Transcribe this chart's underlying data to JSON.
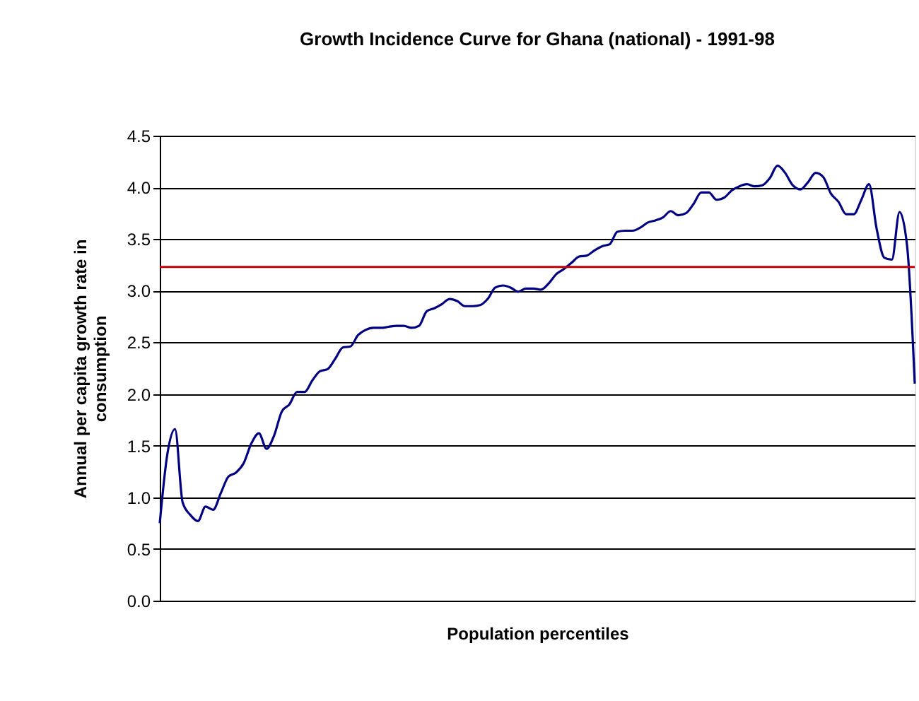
{
  "chart_data": {
    "type": "line",
    "title": "Growth Incidence Curve for Ghana (national) - 1991-98",
    "xlabel": "Population percentiles",
    "ylabel": "Annual per capita growth rate in consumption",
    "categories": [
      null,
      null,
      null,
      null,
      null,
      null,
      null,
      null,
      null,
      null,
      null,
      null,
      null,
      null,
      null,
      null,
      null,
      null,
      null,
      null,
      null,
      null,
      null,
      null,
      null,
      null,
      null,
      null,
      null,
      null,
      null,
      null,
      null,
      null,
      null,
      null,
      null,
      null,
      null,
      null,
      null,
      null,
      null,
      null,
      null,
      null,
      null,
      null,
      null,
      null,
      null,
      null,
      null,
      null,
      null,
      null,
      null,
      null,
      null,
      null,
      null,
      null,
      null,
      null,
      null,
      null,
      null,
      null,
      null,
      null,
      null,
      null,
      null,
      null,
      null,
      null,
      null,
      null,
      null,
      null,
      null,
      null,
      null,
      null,
      null,
      null,
      null,
      null,
      null,
      null,
      null,
      null,
      null,
      null,
      null,
      null,
      null,
      null,
      null,
      null
    ],
    "series": [
      {
        "color": "#000080",
        "values": [
          0.75,
          1.42,
          1.66,
          0.95,
          0.83,
          0.77,
          0.91,
          0.88,
          1.04,
          1.2,
          1.24,
          1.33,
          1.52,
          1.62,
          1.47,
          1.6,
          1.83,
          1.9,
          2.02,
          2.02,
          2.13,
          2.22,
          2.24,
          2.34,
          2.45,
          2.46,
          2.57,
          2.62,
          2.64,
          2.64,
          2.65,
          2.66,
          2.66,
          2.64,
          2.66,
          2.8,
          2.83,
          2.87,
          2.92,
          2.9,
          2.85,
          2.85,
          2.86,
          2.92,
          3.03,
          3.05,
          3.03,
          2.99,
          3.02,
          3.02,
          3.01,
          3.07,
          3.16,
          3.21,
          3.27,
          3.33,
          3.34,
          3.39,
          3.43,
          3.45,
          3.57,
          3.58,
          3.58,
          3.61,
          3.66,
          3.68,
          3.71,
          3.77,
          3.73,
          3.75,
          3.84,
          3.95,
          3.95,
          3.88,
          3.9,
          3.97,
          4.01,
          4.03,
          4.01,
          4.02,
          4.09,
          4.21,
          4.14,
          4.02,
          3.98,
          4.05,
          4.14,
          4.1,
          3.94,
          3.86,
          3.74,
          3.74,
          3.88,
          4.03,
          3.6,
          3.32,
          3.3,
          3.76,
          3.43,
          2.1
        ]
      }
    ],
    "ylim": [
      0,
      4.5
    ],
    "yticks": [
      {
        "value": 0,
        "label": "0.0"
      },
      {
        "value": 0.5,
        "label": "0.5"
      },
      {
        "value": 1,
        "label": "1.0"
      },
      {
        "value": 1.5,
        "label": "1.5"
      },
      {
        "value": 2,
        "label": "2.0"
      },
      {
        "value": 2.5,
        "label": "2.5"
      },
      {
        "value": 3,
        "label": "3.0"
      },
      {
        "value": 3.5,
        "label": "3.5"
      },
      {
        "value": 4,
        "label": "4.0"
      },
      {
        "value": 4.5,
        "label": "4.5"
      }
    ],
    "ref_lines": [
      {
        "axis": "y",
        "value": 3.23,
        "color": "#c00000"
      }
    ],
    "tick_labels": "y",
    "grid": "y",
    "marker": "none",
    "line_style": "solid"
  }
}
